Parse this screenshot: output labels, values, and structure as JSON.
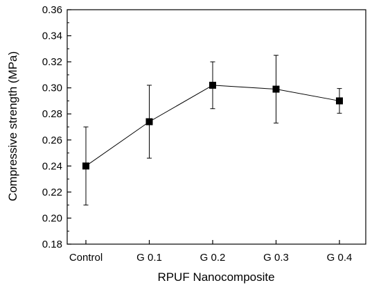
{
  "chart_data": {
    "type": "line",
    "title": "",
    "xlabel": "RPUF Nanocomposite",
    "ylabel": "Compressive strength (MPa)",
    "categories": [
      "Control",
      "G 0.1",
      "G 0.2",
      "G 0.3",
      "G 0.4"
    ],
    "series": [
      {
        "values": [
          0.24,
          0.274,
          0.302,
          0.299,
          0.29
        ],
        "error": [
          0.03,
          0.028,
          0.018,
          0.026,
          0.0095
        ],
        "marker": "square",
        "color": "#000000"
      }
    ],
    "ylim": [
      0.18,
      0.36
    ],
    "yticks": [
      "0.18",
      "0.20",
      "0.22",
      "0.24",
      "0.26",
      "0.28",
      "0.30",
      "0.32",
      "0.34",
      "0.36"
    ],
    "grid": false,
    "legend": "none"
  }
}
